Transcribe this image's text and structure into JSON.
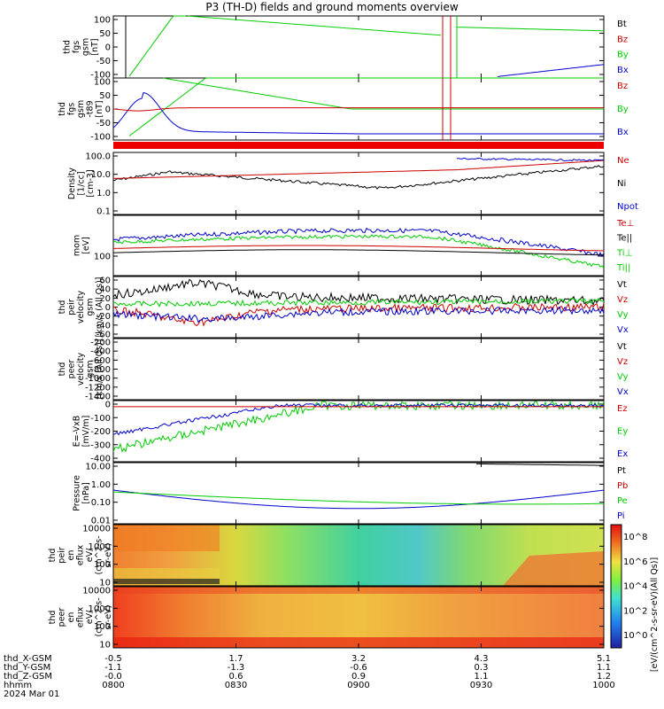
{
  "title": "P3 (TH-D) fields and ground moments overview",
  "chart_data": {
    "type": "line",
    "x_ticks": [
      "0800",
      "0830",
      "0900",
      "0930",
      "1000"
    ],
    "panels": [
      {
        "id": "fgs",
        "ylabel": [
          "thd",
          "fgs",
          "gsm",
          "[nT]"
        ],
        "yticks": [
          "100",
          "50",
          "0",
          "-50",
          "-100"
        ],
        "ylim": [
          -100,
          100
        ],
        "legend": [
          {
            "name": "Bt",
            "color": "#000000"
          },
          {
            "name": "Bz",
            "color": "#cc0000"
          },
          {
            "name": "By",
            "color": "#00cc00"
          },
          {
            "name": "Bx",
            "color": "#0000cc"
          }
        ]
      },
      {
        "id": "fgs_dsl",
        "ylabel": [
          "thd",
          "fgs",
          "gsm",
          "-t89",
          "[nT]"
        ],
        "yticks": [
          "100",
          "50",
          "0",
          "-50",
          "-100"
        ],
        "ylim": [
          -120,
          120
        ],
        "legend": [
          {
            "name": "Bz",
            "color": "#cc0000"
          },
          {
            "name": "By",
            "color": "#00cc00"
          },
          {
            "name": "Bx",
            "color": "#0000cc"
          }
        ]
      },
      {
        "id": "density",
        "ylabel": [
          "Density",
          "[1/cc]",
          "[cm-3]"
        ],
        "yticks": [
          "100.0",
          "10.0",
          "1.0",
          "0.1"
        ],
        "ylim": [
          0.05,
          150
        ],
        "log": true,
        "legend": [
          {
            "name": "Ne",
            "color": "#cc0000"
          },
          {
            "name": "Ni",
            "color": "#000000"
          },
          {
            "name": "Npot",
            "color": "#0000cc"
          }
        ]
      },
      {
        "id": "temp",
        "ylabel": [
          "mom",
          "[eV]"
        ],
        "yticks": [
          "100"
        ],
        "ylim": [
          60,
          5000
        ],
        "log": true,
        "legend": [
          {
            "name": "Te⊥",
            "color": "#cc0000"
          },
          {
            "name": "Te||",
            "color": "#000000"
          },
          {
            "name": "Ti⊥",
            "color": "#00cc00"
          },
          {
            "name": "Ti||",
            "color": "#00cc00"
          }
        ]
      },
      {
        "id": "peir",
        "ylabel": [
          "thd",
          "peir",
          "velocity",
          "gsm",
          "[km/s (All Qs)]"
        ],
        "yticks": [
          "60",
          "40",
          "20",
          "0",
          "-20",
          "-40",
          "-60"
        ],
        "ylim": [
          -70,
          65
        ],
        "legend": [
          {
            "name": "Vt",
            "color": "#000000"
          },
          {
            "name": "Vz",
            "color": "#cc0000"
          },
          {
            "name": "Vy",
            "color": "#00cc00"
          },
          {
            "name": "Vx",
            "color": "#0000cc"
          }
        ]
      },
      {
        "id": "peer",
        "ylabel": [
          "thd",
          "peer",
          "velocity",
          "gsm",
          "[km/s (All Qs)]"
        ],
        "yticks": [
          "-200",
          "-400",
          "-600",
          "-800",
          "-1000",
          "-1200",
          "-1400"
        ],
        "ylim": [
          -1500,
          -170
        ],
        "legend": [
          {
            "name": "Vt",
            "color": "#000000"
          },
          {
            "name": "Vz",
            "color": "#cc0000"
          },
          {
            "name": "Vy",
            "color": "#00cc00"
          },
          {
            "name": "Vx",
            "color": "#0000cc"
          }
        ]
      },
      {
        "id": "efield",
        "ylabel": [
          "E=-VxB",
          "[mV/m]"
        ],
        "yticks": [
          "0",
          "-100",
          "-200",
          "-300",
          "-400"
        ],
        "ylim": [
          -430,
          30
        ],
        "legend": [
          {
            "name": "Ez",
            "color": "#cc0000"
          },
          {
            "name": "Ey",
            "color": "#00cc00"
          },
          {
            "name": "Ex",
            "color": "#0000cc"
          }
        ]
      },
      {
        "id": "pressure",
        "ylabel": [
          "Pressure",
          "[nPa]"
        ],
        "yticks": [
          "10.00",
          "1.00",
          "0.10",
          "0.01"
        ],
        "ylim": [
          0.005,
          20
        ],
        "log": true,
        "legend": [
          {
            "name": "Pt",
            "color": "#000000"
          },
          {
            "name": "Pb",
            "color": "#cc0000"
          },
          {
            "name": "Pe",
            "color": "#00cc00"
          },
          {
            "name": "Pi",
            "color": "#0000cc"
          }
        ]
      },
      {
        "id": "peir_en",
        "ylabel": [
          "thd",
          "peir",
          "en",
          "eflux",
          "eV/",
          "(cm^2-s-",
          "sr-eV)"
        ],
        "yticks": [
          "10000",
          "1000",
          "100",
          "10"
        ],
        "spectrogram": true
      },
      {
        "id": "peer_en",
        "ylabel": [
          "thd",
          "peer",
          "en",
          "eflux",
          "eV/",
          "(cm^2-s-",
          "sr-eV)"
        ],
        "yticks": [
          "10000",
          "1000",
          "100",
          "10"
        ],
        "spectrogram": true
      }
    ],
    "colorbar": {
      "ticks": [
        "10^8",
        "10^6",
        "10^4",
        "10^2",
        "10^0"
      ],
      "label": "[eV/(cm^2-s-sr-eV)(All Qs)]"
    },
    "ephemeris": {
      "rows": [
        {
          "name": "thd_X-GSM",
          "values": [
            "-0.5",
            "1.7",
            "3.2",
            "4.3",
            "5.1"
          ]
        },
        {
          "name": "thd_Y-GSM",
          "values": [
            "-1.1",
            "-1.3",
            "-0.6",
            "0.3",
            "1.1"
          ]
        },
        {
          "name": "thd_Z-GSM",
          "values": [
            "-0.0",
            "0.6",
            "0.9",
            "1.1",
            "1.2"
          ]
        },
        {
          "name": "hhmm",
          "values": [
            "0800",
            "0830",
            "0900",
            "0930",
            "1000"
          ]
        }
      ],
      "date": "2024 Mar 01"
    }
  }
}
